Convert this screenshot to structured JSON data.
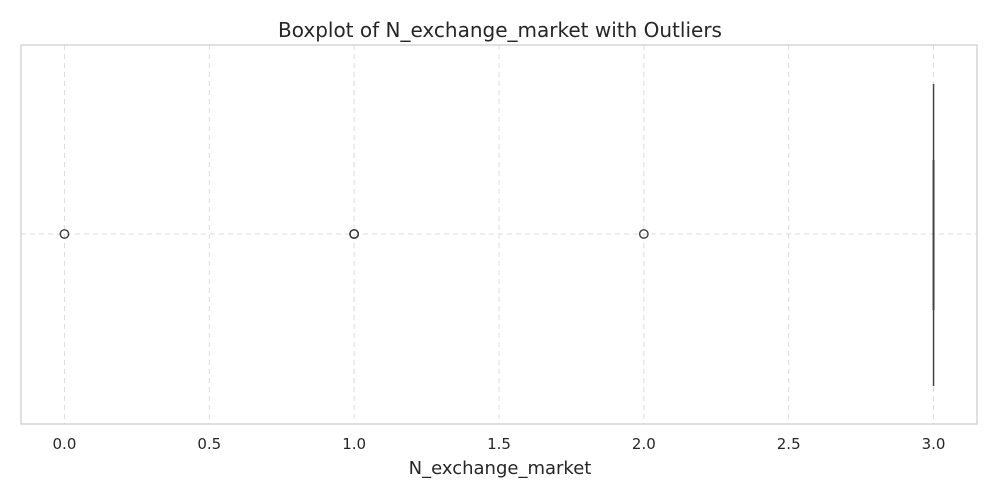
{
  "chart_data": {
    "type": "boxplot",
    "title": "Boxplot of N_exchange_market with Outliers",
    "xlabel": "N_exchange_market",
    "ylabel": "",
    "orientation": "horizontal",
    "xlim": [
      -0.15,
      3.15
    ],
    "xticks": [
      0.0,
      0.5,
      1.0,
      1.5,
      2.0,
      2.5,
      3.0
    ],
    "xtick_labels": [
      "0.0",
      "0.5",
      "1.0",
      "1.5",
      "2.0",
      "2.5",
      "3.0"
    ],
    "grid": true,
    "box": {
      "whisker_low": 3.0,
      "q1": 3.0,
      "median": 3.0,
      "q3": 3.0,
      "whisker_high": 3.0
    },
    "outliers": [
      0.0,
      1.0,
      1.0,
      1.0,
      2.0
    ],
    "colors": {
      "box": "#444444",
      "outlier": "#3d3d3d",
      "grid": "#dcdcdc",
      "frame": "#cccccc"
    }
  }
}
